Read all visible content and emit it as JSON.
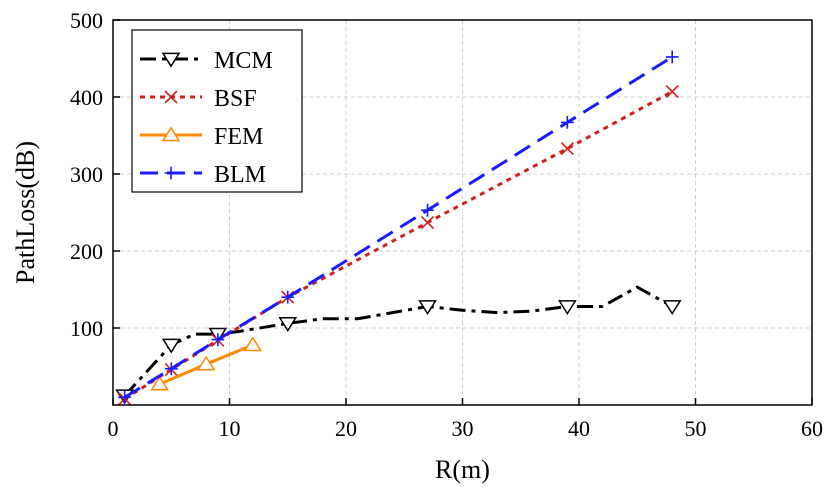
{
  "chart_data": {
    "type": "line",
    "xlabel": "R(m)",
    "ylabel": "PathLoss(dB)",
    "xlim": [
      0,
      60
    ],
    "ylim": [
      0,
      500
    ],
    "xticks": [
      "0",
      "10",
      "20",
      "30",
      "40",
      "50",
      "60"
    ],
    "yticks": [
      "100",
      "200",
      "300",
      "400",
      "500"
    ],
    "grid": true,
    "legend_position": "top-left",
    "series": [
      {
        "name": "MCM",
        "color": "#000000",
        "dash": "dash-dot",
        "marker": "triangle-down",
        "x": [
          1,
          3,
          5,
          7,
          9,
          11,
          15,
          18,
          21,
          24,
          27,
          30,
          33,
          36,
          39,
          42,
          45,
          48
        ],
        "y": [
          12,
          45,
          78,
          92,
          92,
          96,
          106,
          112,
          112,
          120,
          128,
          123,
          120,
          122,
          128,
          128,
          153,
          128
        ],
        "marker_x": [
          1,
          5,
          9,
          15,
          27,
          39,
          48
        ],
        "marker_y": [
          12,
          78,
          92,
          106,
          128,
          128,
          128
        ]
      },
      {
        "name": "BSF",
        "color": "#d02020",
        "dash": "dot",
        "marker": "x",
        "x": [
          1,
          5,
          9,
          15,
          27,
          39,
          48
        ],
        "y": [
          8,
          46,
          84,
          140,
          237,
          333,
          407
        ],
        "marker_x": [
          1,
          5,
          9,
          15,
          27,
          39,
          48
        ],
        "marker_y": [
          8,
          46,
          84,
          140,
          237,
          333,
          407
        ]
      },
      {
        "name": "FEM",
        "color": "#ff8a00",
        "dash": "solid",
        "marker": "triangle-up",
        "x": [
          4,
          8,
          12
        ],
        "y": [
          27,
          53,
          78
        ],
        "marker_x": [
          4,
          8,
          12
        ],
        "marker_y": [
          27,
          53,
          78
        ]
      },
      {
        "name": "BLM",
        "color": "#1a1aff",
        "dash": "dash",
        "marker": "plus",
        "x": [
          1,
          5,
          9,
          15,
          27,
          39,
          48
        ],
        "y": [
          10,
          47,
          85,
          140,
          253,
          367,
          452
        ],
        "marker_x": [
          1,
          5,
          9,
          15,
          27,
          39,
          48
        ],
        "marker_y": [
          10,
          47,
          85,
          140,
          253,
          367,
          452
        ]
      }
    ]
  }
}
